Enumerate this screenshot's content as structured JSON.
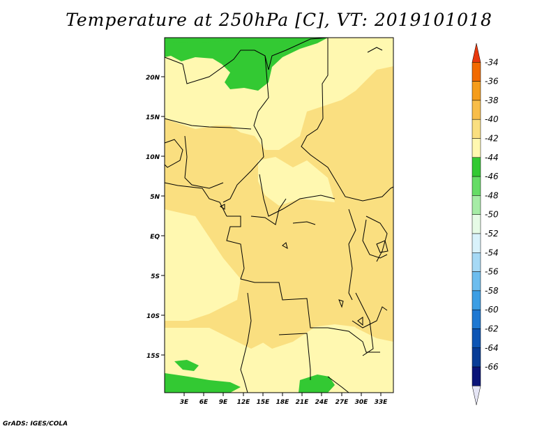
{
  "title": "Temperature at 250hPa [C], VT: 2019101018",
  "footer": "GrADS: IGES/COLA",
  "map": {
    "lat_labels": [
      "20N",
      "15N",
      "10N",
      "5N",
      "EQ",
      "5S",
      "10S",
      "15S"
    ],
    "lon_labels": [
      "3E",
      "6E",
      "9E",
      "12E",
      "15E",
      "18E",
      "21E",
      "24E",
      "27E",
      "30E",
      "33E"
    ]
  },
  "colorbar": {
    "labels": [
      "-34",
      "-36",
      "-38",
      "-40",
      "-42",
      "-44",
      "-46",
      "-48",
      "-50",
      "-52",
      "-54",
      "-56",
      "-58",
      "-60",
      "-62",
      "-64",
      "-66"
    ],
    "colors": [
      "#e8380e",
      "#f26a00",
      "#f59c1a",
      "#f8bd49",
      "#fadf80",
      "#fff8b0",
      "#33c933",
      "#66dc66",
      "#a6eca6",
      "#e6fbe6",
      "#d9f2fb",
      "#a6d9f5",
      "#6dbdee",
      "#3c9ee4",
      "#1e78d2",
      "#0d55b4",
      "#083c96",
      "#0a1478",
      "#e5e5f5"
    ]
  },
  "palette": {
    "light_yellow": "#fff8b0",
    "tan": "#fadf80",
    "green": "#33c933",
    "border": "#000000"
  }
}
